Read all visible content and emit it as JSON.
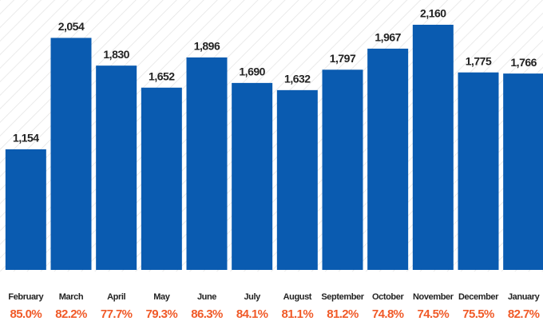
{
  "chart_data": {
    "type": "bar",
    "categories": [
      "February",
      "March",
      "April",
      "May",
      "June",
      "July",
      "August",
      "September",
      "October",
      "November",
      "December",
      "January"
    ],
    "values": [
      1154,
      2054,
      1830,
      1652,
      1896,
      1690,
      1632,
      1797,
      1967,
      2160,
      1775,
      1766
    ],
    "value_labels": [
      "1,154",
      "2,054",
      "1,830",
      "1,652",
      "1,896",
      "1,690",
      "1,632",
      "1,797",
      "1,967",
      "2,160",
      "1,775",
      "1,766"
    ],
    "rate_labels": [
      "85.0%",
      "82.2%",
      "77.7%",
      "79.3%",
      "86.3%",
      "84.1%",
      "81.1%",
      "81.2%",
      "74.8%",
      "74.5%",
      "75.5%",
      "82.7%"
    ],
    "color": "#0a5bb0",
    "rate_color": "#f05a28",
    "ylim": [
      180,
      2200
    ]
  }
}
